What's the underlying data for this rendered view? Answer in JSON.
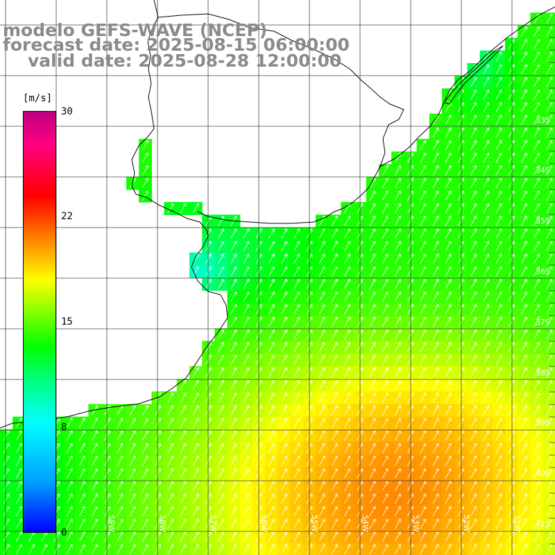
{
  "header": {
    "model_line": "modelo GEFS-WAVE (NCEP)",
    "forecast_line": "forecast date: 2025-08-15 06:00:00",
    "valid_line": "valid date: 2025-08-28 12:00:00"
  },
  "colorbar": {
    "unit": "[m/s]",
    "ticks": [
      "30",
      "22",
      "15",
      "8",
      "0"
    ],
    "tick_values": [
      30,
      22,
      15,
      8,
      0
    ],
    "colors": [
      "#0000ff",
      "#00a0ff",
      "#00ffff",
      "#00ff80",
      "#00ff00",
      "#80ff00",
      "#ffff00",
      "#ff8000",
      "#ff0000",
      "#ff0080",
      "#c00080"
    ]
  },
  "lat_labels": [
    "33S",
    "34S",
    "35S",
    "36S",
    "37S",
    "38S",
    "39S",
    "40S",
    "41S"
  ],
  "lon_labels": [
    "59W",
    "58W",
    "57W",
    "56W",
    "55W",
    "54W",
    "53W",
    "52W",
    "51W"
  ],
  "colors": {
    "land": "#ffffff",
    "coast": "#000000",
    "grid": "#333333",
    "arrow": "#ffffff",
    "title": "#8a8a8a"
  }
}
